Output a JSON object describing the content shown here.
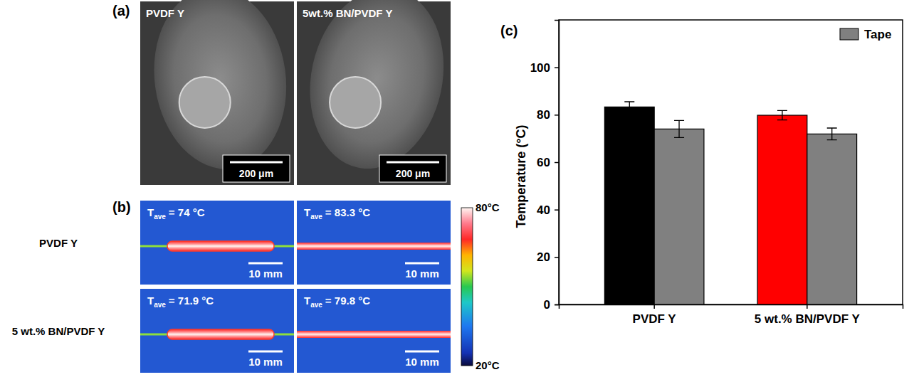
{
  "figure": {
    "panels": {
      "a": {
        "label": "(a)",
        "images": [
          {
            "title": "PVDF Y",
            "scale_bar": "200 μm"
          },
          {
            "title": "5wt.% BN/PVDF Y",
            "scale_bar": "200 μm"
          }
        ]
      },
      "b": {
        "label": "(b)",
        "rows": [
          {
            "name": "PVDF Y",
            "images": [
              {
                "symbol": "T",
                "subscript": "ave",
                "text": "= 74 °C",
                "scale_bar": "10 mm"
              },
              {
                "symbol": "T",
                "subscript": "ave",
                "text": "= 83.3 °C",
                "scale_bar": "10 mm"
              }
            ]
          },
          {
            "name": "5 wt.% BN/PVDF Y",
            "images": [
              {
                "symbol": "T",
                "subscript": "ave",
                "text": "= 71.9 °C",
                "scale_bar": "10 mm"
              },
              {
                "symbol": "T",
                "subscript": "ave",
                "text": "= 79.8 °C",
                "scale_bar": "10 mm"
              }
            ]
          }
        ],
        "colorbar": {
          "range": [
            20,
            80
          ],
          "ticks": [
            {
              "value": 20,
              "label": "20°C"
            },
            {
              "value": 80,
              "label": "80°C"
            }
          ]
        }
      },
      "c": {
        "label": "(c)"
      }
    }
  },
  "chart_data": {
    "type": "bar",
    "y_label": "Temperature (°C)",
    "categories": [
      "PVDF Y",
      "5 wt.% BN/PVDF Y"
    ],
    "series": [
      {
        "colors": [
          "#000000",
          "#ff0000"
        ],
        "values": [
          83.3,
          79.8
        ],
        "errors": [
          2.2,
          2.0
        ]
      },
      {
        "name": "Tape",
        "color": "#808080",
        "values": [
          74,
          71.9
        ],
        "errors": [
          3.6,
          2.5
        ]
      }
    ],
    "ylim": [
      0,
      120
    ],
    "yticks": [
      0,
      20,
      40,
      60,
      80,
      100
    ],
    "grid": false,
    "legend": "top-right"
  }
}
